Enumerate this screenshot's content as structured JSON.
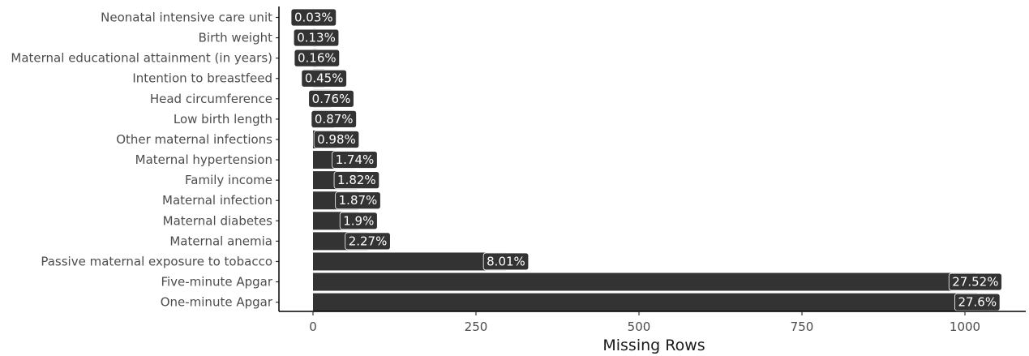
{
  "chart_data": {
    "type": "bar",
    "orientation": "horizontal",
    "title": "",
    "xlabel": "Missing Rows",
    "ylabel": "",
    "xlim": [
      0,
      1090
    ],
    "xticks": [
      0,
      250,
      500,
      750,
      1000
    ],
    "grid": false,
    "legend": "none",
    "bar_color": "#333333",
    "categories": [
      "Neonatal intensive care unit",
      "Birth weight",
      "Maternal educational attainment (in years)",
      "Intention to breastfeed",
      "Head circumference",
      "Low birth length",
      "Other maternal infections",
      "Maternal hypertension",
      "Family income",
      "Maternal infection",
      "Maternal diabetes",
      "Maternal anemia",
      "Passive maternal exposure to tobacco",
      "Five-minute Apgar",
      "One-minute Apgar"
    ],
    "values": [
      1,
      5,
      6,
      17,
      28,
      32,
      36,
      64,
      67,
      69,
      70,
      84,
      296,
      1016,
      1019
    ],
    "labels": [
      "0.03%",
      "0.13%",
      "0.16%",
      "0.45%",
      "0.76%",
      "0.87%",
      "0.98%",
      "1.74%",
      "1.82%",
      "1.87%",
      "1.9%",
      "2.27%",
      "8.01%",
      "27.52%",
      "27.6%"
    ]
  }
}
